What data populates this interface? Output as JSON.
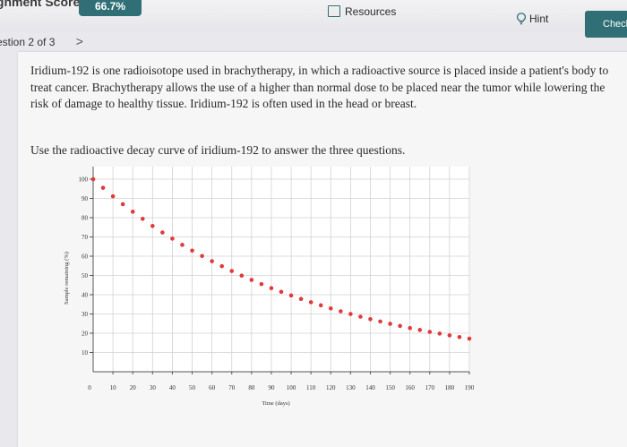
{
  "header": {
    "score_label": "ignment Score:",
    "score_value": "66.7%",
    "resources_label": "Resources",
    "hint_label": "Hint",
    "check_label": "Check"
  },
  "question_nav": {
    "label": "estion 2 of 3",
    "next_glyph": ">"
  },
  "content": {
    "paragraph": "Iridium-192 is one radioisotope used in brachytherapy, in which a radioactive source is placed inside a patient's body to treat cancer. Brachytherapy allows the use of a higher than normal dose to be placed near the tumor while lowering the risk of damage to healthy tissue. Iridium-192 is often used in the head or breast.",
    "instruction": "Use the radioactive decay curve of iridium-192 to answer the three questions."
  },
  "colors": {
    "accent": "#2f6f75",
    "point": "#e03a3a"
  },
  "chart_data": {
    "type": "scatter",
    "xlabel": "Time (days)",
    "ylabel": "Sample remaining (%)",
    "xlim": [
      0,
      190
    ],
    "ylim": [
      0,
      100
    ],
    "xticks": [
      10,
      20,
      30,
      40,
      50,
      60,
      70,
      80,
      90,
      100,
      110,
      120,
      130,
      140,
      150,
      160,
      170,
      180,
      190
    ],
    "yticks": [
      10,
      20,
      30,
      40,
      50,
      60,
      70,
      80,
      90,
      100
    ],
    "origin_label": "0",
    "grid": true,
    "series": [
      {
        "x": [
          0,
          5,
          10,
          15,
          20,
          25,
          30,
          35,
          40,
          45,
          50,
          55,
          60,
          65,
          70,
          75,
          80,
          85,
          90,
          95,
          100,
          105,
          110,
          115,
          120,
          125,
          130,
          135,
          140,
          145,
          150,
          155,
          160,
          165,
          170,
          175,
          180,
          185,
          190
        ],
        "y": [
          100,
          95.5,
          91.1,
          87.0,
          83.1,
          79.4,
          75.7,
          72.3,
          69.1,
          65.9,
          62.9,
          60.1,
          57.4,
          54.8,
          52.3,
          49.9,
          47.7,
          45.5,
          43.4,
          41.5,
          39.6,
          37.8,
          36.1,
          34.5,
          32.9,
          31.4,
          30.0,
          28.6,
          27.3,
          26.1,
          24.9,
          23.8,
          22.7,
          21.7,
          20.7,
          19.8,
          18.9,
          18.0,
          17.2
        ]
      }
    ]
  }
}
